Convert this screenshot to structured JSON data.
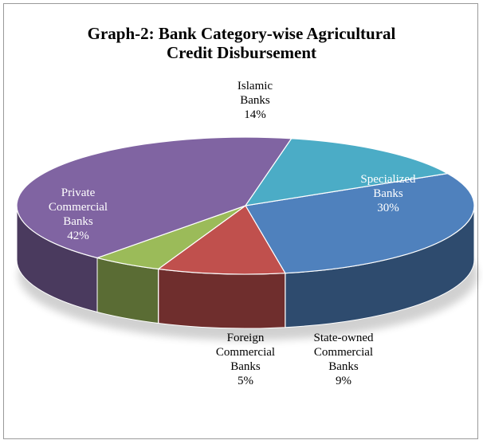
{
  "chart_data": {
    "type": "pie",
    "title_line1": "Graph-2: Bank Category-wise Agricultural",
    "title_line2": "Credit Disbursement",
    "slices": [
      {
        "name_lines": [
          "Specialized",
          "Banks"
        ],
        "value": 30,
        "value_label": "30%",
        "color": "#4F81BD",
        "label_color": "#ffffff"
      },
      {
        "name_lines": [
          "State-owned",
          "Commercial",
          "Banks"
        ],
        "value": 9,
        "value_label": "9%",
        "color": "#C0504D",
        "label_color": "#000000"
      },
      {
        "name_lines": [
          "Foreign",
          "Commercial",
          "Banks"
        ],
        "value": 5,
        "value_label": "5%",
        "color": "#9BBB59",
        "label_color": "#000000"
      },
      {
        "name_lines": [
          "Private",
          "Commercial",
          "Banks"
        ],
        "value": 42,
        "value_label": "42%",
        "color": "#8064A2",
        "label_color": "#ffffff"
      },
      {
        "name_lines": [
          "Islamic",
          "Banks"
        ],
        "value": 14,
        "value_label": "14%",
        "color": "#4BACC6",
        "label_color": "#000000"
      }
    ]
  }
}
